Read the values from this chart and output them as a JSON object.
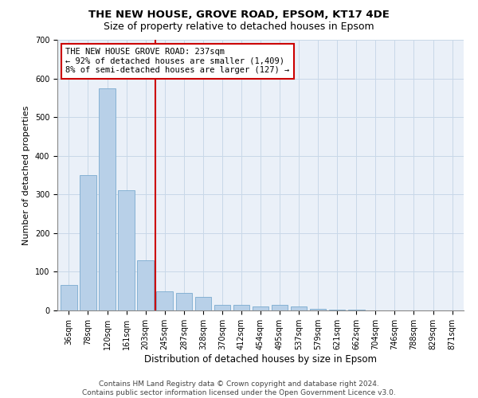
{
  "title1": "THE NEW HOUSE, GROVE ROAD, EPSOM, KT17 4DE",
  "title2": "Size of property relative to detached houses in Epsom",
  "xlabel": "Distribution of detached houses by size in Epsom",
  "ylabel": "Number of detached properties",
  "categories": [
    "36sqm",
    "78sqm",
    "120sqm",
    "161sqm",
    "203sqm",
    "245sqm",
    "287sqm",
    "328sqm",
    "370sqm",
    "412sqm",
    "454sqm",
    "495sqm",
    "537sqm",
    "579sqm",
    "621sqm",
    "662sqm",
    "704sqm",
    "746sqm",
    "788sqm",
    "829sqm",
    "871sqm"
  ],
  "values": [
    65,
    350,
    575,
    310,
    130,
    50,
    45,
    35,
    15,
    15,
    10,
    15,
    10,
    5,
    3,
    3,
    0,
    0,
    0,
    0,
    0
  ],
  "bar_color": "#b8d0e8",
  "bar_edge_color": "#7aabcf",
  "vline_color": "#cc0000",
  "annotation_text": "THE NEW HOUSE GROVE ROAD: 237sqm\n← 92% of detached houses are smaller (1,409)\n8% of semi-detached houses are larger (127) →",
  "annotation_box_color": "#ffffff",
  "annotation_box_edge": "#cc0000",
  "ylim": [
    0,
    700
  ],
  "yticks": [
    0,
    100,
    200,
    300,
    400,
    500,
    600,
    700
  ],
  "grid_color": "#c8d8e8",
  "bg_color": "#eaf0f8",
  "footer": "Contains HM Land Registry data © Crown copyright and database right 2024.\nContains public sector information licensed under the Open Government Licence v3.0.",
  "title1_fontsize": 9.5,
  "title2_fontsize": 9,
  "xlabel_fontsize": 8.5,
  "ylabel_fontsize": 8,
  "tick_fontsize": 7,
  "annot_fontsize": 7.5,
  "footer_fontsize": 6.5
}
